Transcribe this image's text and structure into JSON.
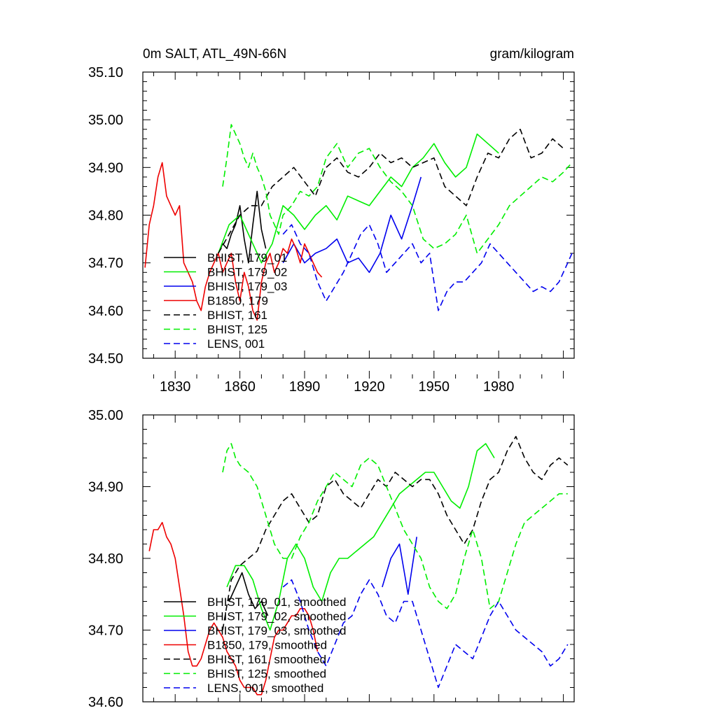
{
  "chart_data": [
    {
      "type": "line",
      "title": "0m SALT, ATL_49N-66N",
      "units": "gram/kilogram",
      "ylim": [
        34.5,
        35.1
      ],
      "xlim": [
        1815,
        2015
      ],
      "yticks": [
        "34.50",
        "34.60",
        "34.70",
        "34.80",
        "34.90",
        "35.00",
        "35.10"
      ],
      "xticks": [
        "1830",
        "1860",
        "1890",
        "1920",
        "1950",
        "1980"
      ],
      "legend": [
        "BHIST, 179_01",
        "BHIST, 179_02",
        "BHIST, 179_03",
        "B1850, 179",
        "BHIST, 161",
        "BHIST, 125",
        "LENS, 001"
      ],
      "series": [
        {
          "name": "BHIST, 179_01",
          "color": "#000000",
          "dash": "solid",
          "x": [
            1850,
            1852,
            1854,
            1856,
            1858,
            1860,
            1862,
            1864,
            1866,
            1868,
            1870,
            1872
          ],
          "values": [
            34.72,
            34.74,
            34.73,
            34.76,
            34.78,
            34.82,
            34.75,
            34.7,
            34.78,
            34.85,
            34.77,
            34.73
          ]
        },
        {
          "name": "BHIST, 179_02",
          "color": "#00ee00",
          "dash": "solid",
          "x": [
            1850,
            1855,
            1860,
            1865,
            1870,
            1875,
            1880,
            1885,
            1890,
            1895,
            1900,
            1905,
            1910,
            1915,
            1920,
            1925,
            1930,
            1935,
            1940,
            1945,
            1950,
            1955,
            1960,
            1965,
            1970,
            1975,
            1980
          ],
          "values": [
            34.72,
            34.78,
            34.8,
            34.75,
            34.7,
            34.74,
            34.82,
            34.8,
            34.77,
            34.8,
            34.82,
            34.79,
            34.84,
            34.83,
            34.82,
            34.85,
            34.88,
            34.86,
            34.9,
            34.92,
            34.95,
            34.91,
            34.88,
            34.9,
            34.97,
            34.95,
            34.93
          ]
        },
        {
          "name": "BHIST, 179_03",
          "color": "#0000ee",
          "dash": "solid",
          "x": [
            1880,
            1885,
            1890,
            1895,
            1900,
            1905,
            1910,
            1915,
            1920,
            1925,
            1930,
            1935,
            1940,
            1944
          ],
          "values": [
            34.7,
            34.74,
            34.7,
            34.72,
            34.73,
            34.75,
            34.7,
            34.71,
            34.68,
            34.72,
            34.8,
            34.75,
            34.82,
            34.88
          ]
        },
        {
          "name": "B1850, 179",
          "color": "#ee0000",
          "dash": "solid",
          "x": [
            1816,
            1818,
            1820,
            1822,
            1824,
            1826,
            1828,
            1830,
            1832,
            1834,
            1836,
            1838,
            1840,
            1842,
            1844,
            1846,
            1848,
            1850,
            1852,
            1854,
            1856,
            1858,
            1860,
            1862,
            1864,
            1866,
            1868,
            1870,
            1872,
            1874,
            1876,
            1878,
            1880,
            1882,
            1884,
            1886,
            1888,
            1890,
            1892,
            1894,
            1896,
            1898
          ],
          "values": [
            34.69,
            34.78,
            34.82,
            34.88,
            34.91,
            34.84,
            34.82,
            34.8,
            34.82,
            34.7,
            34.68,
            34.66,
            34.62,
            34.6,
            34.65,
            34.68,
            34.7,
            34.72,
            34.68,
            34.7,
            34.72,
            34.66,
            34.62,
            34.68,
            34.65,
            34.6,
            34.58,
            34.66,
            34.7,
            34.72,
            34.68,
            34.7,
            34.73,
            34.72,
            34.75,
            34.73,
            34.7,
            34.74,
            34.72,
            34.7,
            34.68,
            34.67
          ]
        },
        {
          "name": "BHIST, 161",
          "color": "#000000",
          "dash": "dashed",
          "x": [
            1850,
            1855,
            1860,
            1865,
            1870,
            1875,
            1880,
            1885,
            1890,
            1895,
            1900,
            1905,
            1910,
            1915,
            1920,
            1925,
            1930,
            1935,
            1940,
            1945,
            1950,
            1955,
            1960,
            1965,
            1970,
            1975,
            1980,
            1985,
            1990,
            1995,
            2000,
            2005,
            2010
          ],
          "values": [
            34.72,
            34.76,
            34.8,
            34.82,
            34.82,
            34.86,
            34.88,
            34.9,
            34.87,
            34.84,
            34.9,
            34.92,
            34.89,
            34.88,
            34.9,
            34.93,
            34.91,
            34.92,
            34.9,
            34.91,
            34.92,
            34.86,
            34.84,
            34.82,
            34.88,
            34.93,
            34.92,
            34.96,
            34.98,
            34.92,
            34.93,
            34.96,
            34.94
          ]
        },
        {
          "name": "BHIST, 125",
          "color": "#00ee00",
          "dash": "dashed",
          "x": [
            1852,
            1854,
            1856,
            1858,
            1860,
            1862,
            1864,
            1866,
            1868,
            1870,
            1872,
            1874,
            1876,
            1878,
            1880,
            1884,
            1888,
            1892,
            1896,
            1900,
            1905,
            1910,
            1915,
            1920,
            1925,
            1930,
            1935,
            1940,
            1945,
            1950,
            1955,
            1960,
            1965,
            1970,
            1975,
            1980,
            1985,
            1990,
            1995,
            2000,
            2005,
            2010,
            2014
          ],
          "values": [
            34.86,
            34.92,
            34.99,
            34.97,
            34.95,
            34.92,
            34.9,
            34.93,
            34.9,
            34.88,
            34.85,
            34.8,
            34.78,
            34.76,
            34.8,
            34.82,
            34.85,
            34.84,
            34.86,
            34.92,
            34.95,
            34.9,
            34.93,
            34.94,
            34.9,
            34.87,
            34.85,
            34.82,
            34.75,
            34.73,
            34.74,
            34.76,
            34.8,
            34.72,
            34.75,
            34.78,
            34.82,
            34.84,
            34.86,
            34.88,
            34.87,
            34.89,
            34.91
          ]
        },
        {
          "name": "LENS, 001",
          "color": "#0000ee",
          "dash": "dashed",
          "x": [
            1880,
            1884,
            1888,
            1892,
            1896,
            1900,
            1904,
            1908,
            1912,
            1916,
            1920,
            1924,
            1928,
            1932,
            1936,
            1940,
            1944,
            1948,
            1952,
            1956,
            1960,
            1964,
            1968,
            1972,
            1976,
            1980,
            1984,
            1988,
            1992,
            1996,
            2000,
            2004,
            2008,
            2012,
            2014
          ],
          "values": [
            34.76,
            34.78,
            34.74,
            34.72,
            34.66,
            34.62,
            34.65,
            34.68,
            34.72,
            34.76,
            34.78,
            34.74,
            34.68,
            34.7,
            34.72,
            34.74,
            34.7,
            34.72,
            34.6,
            34.64,
            34.66,
            34.66,
            34.68,
            34.7,
            34.74,
            34.72,
            34.7,
            34.68,
            34.66,
            34.64,
            34.65,
            34.64,
            34.66,
            34.7,
            34.72
          ]
        }
      ]
    },
    {
      "type": "line",
      "ylim": [
        34.6,
        35.0
      ],
      "xlim": [
        1815,
        2015
      ],
      "yticks": [
        "34.60",
        "34.70",
        "34.80",
        "34.90",
        "35.00"
      ],
      "legend": [
        "BHIST, 179_01, smoothed",
        "BHIST, 179_02, smoothed",
        "BHIST, 179_03, smoothed",
        "B1850, 179, smoothed",
        "BHIST, 161, smoothed",
        "BHIST, 125, smoothed",
        "LENS, 001, smoothed"
      ],
      "series": [
        {
          "name": "BHIST, 179_01, smoothed",
          "color": "#000000",
          "dash": "solid",
          "x": [
            1855,
            1858,
            1861,
            1864,
            1867,
            1870,
            1873
          ],
          "values": [
            34.74,
            34.76,
            34.78,
            34.75,
            34.73,
            34.74,
            34.72
          ]
        },
        {
          "name": "BHIST, 179_02, smoothed",
          "color": "#00ee00",
          "dash": "solid",
          "x": [
            1854,
            1858,
            1862,
            1866,
            1870,
            1874,
            1878,
            1882,
            1886,
            1890,
            1894,
            1898,
            1902,
            1906,
            1910,
            1914,
            1918,
            1922,
            1926,
            1930,
            1934,
            1938,
            1942,
            1946,
            1950,
            1954,
            1958,
            1962,
            1966,
            1970,
            1974,
            1978
          ],
          "values": [
            34.76,
            34.79,
            34.79,
            34.77,
            34.73,
            34.7,
            34.74,
            34.8,
            34.82,
            34.8,
            34.76,
            34.74,
            34.78,
            34.8,
            34.8,
            34.81,
            34.82,
            34.83,
            34.85,
            34.87,
            34.89,
            34.9,
            34.91,
            34.92,
            34.92,
            34.9,
            34.88,
            34.87,
            34.9,
            34.95,
            34.96,
            34.94
          ]
        },
        {
          "name": "BHIST, 179_03, smoothed",
          "color": "#0000ee",
          "dash": "solid",
          "x": [
            1926,
            1930,
            1934,
            1938,
            1942
          ],
          "values": [
            34.76,
            34.8,
            34.82,
            34.75,
            34.83
          ]
        },
        {
          "name": "B1850, 179, smoothed",
          "color": "#ee0000",
          "dash": "solid",
          "x": [
            1818,
            1820,
            1822,
            1824,
            1826,
            1828,
            1830,
            1832,
            1834,
            1836,
            1838,
            1840,
            1842,
            1844,
            1846,
            1848,
            1850,
            1852,
            1854,
            1856,
            1858,
            1860,
            1862,
            1864,
            1866,
            1868,
            1870,
            1872,
            1874,
            1876,
            1878,
            1880,
            1882,
            1884,
            1886,
            1888,
            1890,
            1892,
            1894,
            1896
          ],
          "values": [
            34.81,
            34.84,
            34.84,
            34.85,
            34.83,
            34.82,
            34.8,
            34.76,
            34.72,
            34.67,
            34.65,
            34.65,
            34.66,
            34.68,
            34.7,
            34.71,
            34.7,
            34.69,
            34.67,
            34.66,
            34.65,
            34.63,
            34.62,
            34.62,
            34.62,
            34.61,
            34.61,
            34.63,
            34.66,
            34.69,
            34.7,
            34.7,
            34.71,
            34.72,
            34.72,
            34.73,
            34.73,
            34.72,
            34.7,
            34.67
          ]
        },
        {
          "name": "BHIST, 161, smoothed",
          "color": "#000000",
          "dash": "dashed",
          "x": [
            1852,
            1856,
            1860,
            1864,
            1868,
            1872,
            1876,
            1880,
            1884,
            1888,
            1892,
            1896,
            1900,
            1904,
            1908,
            1912,
            1916,
            1920,
            1924,
            1928,
            1932,
            1936,
            1940,
            1944,
            1948,
            1952,
            1956,
            1960,
            1964,
            1968,
            1972,
            1976,
            1980,
            1984,
            1988,
            1992,
            1996,
            2000,
            2004,
            2008,
            2012
          ],
          "values": [
            34.7,
            34.77,
            34.79,
            34.8,
            34.81,
            34.84,
            34.86,
            34.88,
            34.89,
            34.87,
            34.85,
            34.86,
            34.9,
            34.91,
            34.89,
            34.88,
            34.87,
            34.89,
            34.91,
            34.9,
            34.92,
            34.91,
            34.9,
            34.91,
            34.91,
            34.89,
            34.86,
            34.84,
            34.82,
            34.84,
            34.88,
            34.91,
            34.92,
            34.95,
            34.97,
            34.94,
            34.92,
            34.91,
            34.93,
            34.94,
            34.93
          ]
        },
        {
          "name": "BHIST, 125, smoothed",
          "color": "#00ee00",
          "dash": "dashed",
          "x": [
            1852,
            1854,
            1856,
            1858,
            1860,
            1864,
            1868,
            1872,
            1876,
            1880,
            1884,
            1888,
            1892,
            1896,
            1900,
            1904,
            1908,
            1912,
            1916,
            1920,
            1924,
            1928,
            1932,
            1936,
            1940,
            1944,
            1948,
            1952,
            1956,
            1960,
            1964,
            1968,
            1972,
            1976,
            1980,
            1984,
            1988,
            1992,
            1996,
            2000,
            2004,
            2008,
            2012
          ],
          "values": [
            34.92,
            34.95,
            34.96,
            34.94,
            34.93,
            34.92,
            34.9,
            34.86,
            34.82,
            34.8,
            34.8,
            34.83,
            34.85,
            34.88,
            34.9,
            34.92,
            34.91,
            34.9,
            34.93,
            34.94,
            34.93,
            34.9,
            34.87,
            34.84,
            34.82,
            34.8,
            34.76,
            34.74,
            34.73,
            34.75,
            34.8,
            34.84,
            34.8,
            34.73,
            34.74,
            34.78,
            34.82,
            34.85,
            34.86,
            34.87,
            34.88,
            34.89,
            34.89
          ]
        },
        {
          "name": "LENS, 001, smoothed",
          "color": "#0000ee",
          "dash": "dashed",
          "x": [
            1880,
            1884,
            1888,
            1892,
            1896,
            1900,
            1904,
            1908,
            1912,
            1916,
            1920,
            1924,
            1928,
            1932,
            1936,
            1940,
            1944,
            1948,
            1952,
            1956,
            1960,
            1964,
            1968,
            1972,
            1976,
            1980,
            1984,
            1988,
            1992,
            1996,
            2000,
            2004,
            2008,
            2012
          ],
          "values": [
            34.76,
            34.77,
            34.74,
            34.7,
            34.67,
            34.65,
            34.68,
            34.71,
            34.72,
            34.75,
            34.77,
            34.75,
            34.72,
            34.71,
            34.74,
            34.74,
            34.7,
            34.66,
            34.62,
            34.65,
            34.68,
            34.67,
            34.66,
            34.69,
            34.72,
            34.74,
            34.72,
            34.7,
            34.69,
            34.68,
            34.67,
            34.65,
            34.66,
            34.68
          ]
        }
      ]
    }
  ]
}
